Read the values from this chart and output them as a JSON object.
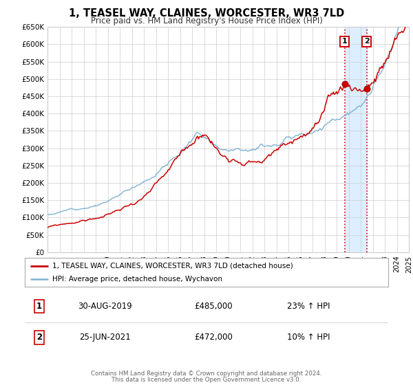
{
  "title": "1, TEASEL WAY, CLAINES, WORCESTER, WR3 7LD",
  "subtitle": "Price paid vs. HM Land Registry's House Price Index (HPI)",
  "legend_line1": "1, TEASEL WAY, CLAINES, WORCESTER, WR3 7LD (detached house)",
  "legend_line2": "HPI: Average price, detached house, Wychavon",
  "red_color": "#cc0000",
  "blue_color": "#7fb3d3",
  "sale1_date": 2019.66,
  "sale1_price": 485000,
  "sale1_label": "1",
  "sale1_table": "30-AUG-2019",
  "sale1_price_str": "£485,000",
  "sale1_hpi": "23% ↑ HPI",
  "sale2_date": 2021.49,
  "sale2_price": 472000,
  "sale2_label": "2",
  "sale2_table": "25-JUN-2021",
  "sale2_price_str": "£472,000",
  "sale2_hpi": "10% ↑ HPI",
  "footer1": "Contains HM Land Registry data © Crown copyright and database right 2024.",
  "footer2": "This data is licensed under the Open Government Licence v3.0.",
  "ylim_max": 650000,
  "ylim_min": 0,
  "xlim_min": 1995.0,
  "xlim_max": 2025.0,
  "background_color": "#ffffff",
  "shaded_region_color": "#ddeeff",
  "grid_color": "#cccccc"
}
